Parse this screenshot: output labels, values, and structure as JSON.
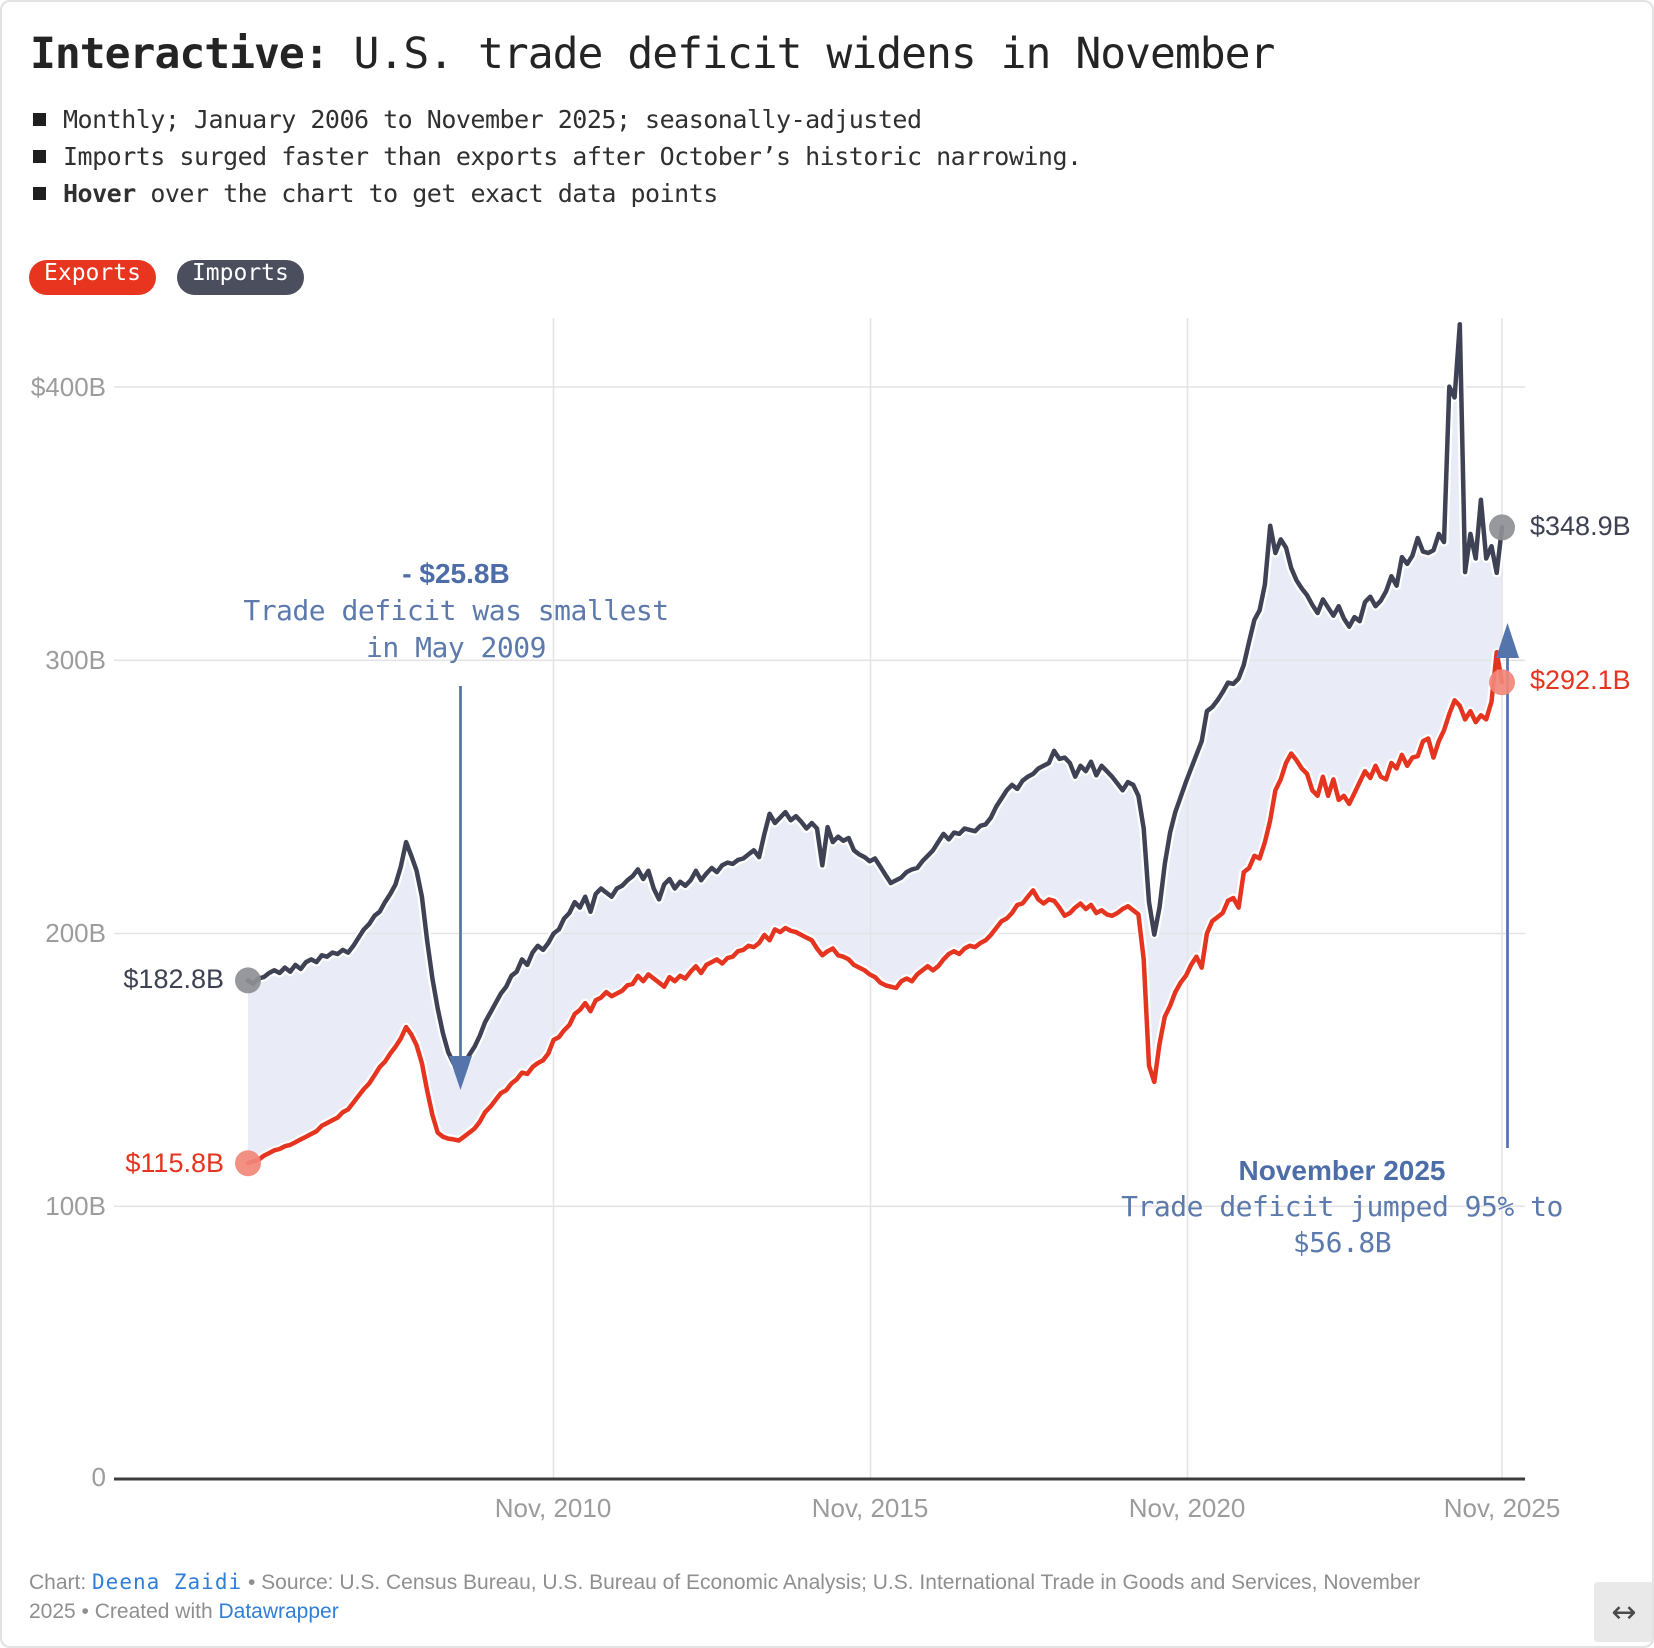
{
  "header": {
    "title_lead": "Interactive:",
    "title_rest": " U.S. trade deficit widens in November",
    "bullets": [
      {
        "bold": "",
        "text": "Monthly; January 2006 to November 2025; seasonally-adjusted"
      },
      {
        "bold": "",
        "text": "Imports surged faster than exports after October’s historic narrowing."
      },
      {
        "bold": "Hover",
        "text": " over the chart to get exact data points"
      }
    ]
  },
  "legend": {
    "exports_label": "Exports",
    "imports_label": "Imports"
  },
  "axis": {
    "y_ticks": [
      "$400B",
      "300B",
      "200B",
      "100B",
      "0"
    ],
    "x_ticks": [
      "Nov, 2010",
      "Nov, 2015",
      "Nov, 2020",
      "Nov, 2025"
    ]
  },
  "value_labels": {
    "imports_start": "$182.8B",
    "exports_start": "$115.8B",
    "imports_end": "$348.9B",
    "exports_end": "$292.1B"
  },
  "annotations": {
    "may2009": {
      "headline": "- $25.8B",
      "line1": "Trade deficit was smallest",
      "line2": "in May 2009"
    },
    "nov2025": {
      "headline": "November 2025",
      "line1": "Trade deficit jumped 95% to",
      "line2": "$56.8B"
    }
  },
  "footer": {
    "chart_prefix": "Chart: ",
    "chart_author": "Deena Zaidi",
    "source_text": " • Source: U.S. Census Bureau, U.S. Bureau of Economic Analysis; U.S. International Trade in Goods and Services, November",
    "line2_prefix": "2025 • Created with ",
    "creator_link": "Datawrapper",
    "resize_icon": "↔"
  },
  "colors": {
    "exports": "#e5341f",
    "exports_pill": "#e8351f",
    "imports": "#3f4254",
    "imports_pill": "#4b4e5d",
    "deficit_area": "#e9ecf6",
    "annotation_blue": "#5474ab",
    "imports_dot": "#8e8f95",
    "exports_dot": "#f28779",
    "grid": "#e4e4e6",
    "axis_text": "#9c9c9c",
    "link_blue": "#2f7ed8"
  },
  "chart_data": {
    "type": "line",
    "title": "Interactive: U.S. trade deficit widens in November",
    "unit": "$B (goods and services, seasonally adjusted)",
    "frequency": "monthly",
    "x_range": "Jan 2006 – Nov 2025",
    "x_tick_labels": [
      "Nov, 2010",
      "Nov, 2015",
      "Nov, 2020",
      "Nov, 2025"
    ],
    "x_tick_month_index": [
      58,
      118,
      178,
      238
    ],
    "ylim": [
      0,
      430
    ],
    "y_gridlines": [
      0,
      100,
      200,
      300,
      400
    ],
    "legend_position": "top-left",
    "key_points": {
      "smallest_deficit": {
        "date": "May 2009",
        "deficit": 25.8
      },
      "latest": {
        "date": "Nov 2025",
        "imports": 348.9,
        "exports": 292.1,
        "deficit": 56.8,
        "deficit_change_pct": 95
      }
    },
    "series": [
      {
        "name": "Exports",
        "values": [
          115.8,
          116.5,
          117.0,
          118.5,
          119.5,
          120.5,
          121.0,
          122.0,
          122.5,
          123.5,
          124.5,
          125.5,
          126.5,
          127.5,
          129.5,
          130.5,
          131.5,
          132.5,
          134.5,
          135.5,
          138.0,
          140.5,
          143.0,
          145.0,
          148.0,
          151.0,
          153.0,
          156.0,
          158.5,
          161.5,
          165.7,
          163.0,
          159.0,
          152.5,
          142.5,
          133.5,
          127.0,
          125.5,
          124.8,
          124.5,
          124.1,
          125.5,
          127.0,
          128.5,
          131.0,
          134.5,
          136.5,
          139.0,
          141.5,
          142.5,
          145.0,
          146.5,
          149.0,
          148.5,
          151.0,
          152.5,
          153.5,
          156.0,
          161.0,
          162.0,
          164.5,
          166.5,
          170.5,
          172.0,
          174.5,
          171.5,
          175.5,
          176.5,
          178.5,
          177.0,
          178.0,
          179.0,
          181.0,
          181.5,
          184.5,
          182.5,
          185.0,
          183.5,
          182.0,
          180.5,
          184.0,
          182.5,
          184.5,
          183.5,
          186.0,
          188.0,
          185.5,
          188.5,
          189.5,
          190.5,
          189.0,
          191.0,
          191.5,
          193.5,
          194.0,
          195.5,
          195.0,
          196.5,
          199.5,
          197.5,
          201.5,
          200.5,
          202.0,
          201.0,
          200.5,
          199.5,
          198.5,
          197.5,
          194.5,
          192.0,
          193.5,
          194.5,
          192.0,
          191.5,
          190.5,
          188.5,
          187.5,
          186.5,
          185.0,
          184.0,
          182.0,
          181.0,
          180.5,
          180.0,
          182.5,
          183.5,
          182.5,
          185.0,
          186.5,
          188.0,
          186.5,
          188.0,
          190.5,
          192.5,
          193.5,
          192.5,
          194.5,
          195.5,
          195.0,
          196.5,
          197.5,
          199.5,
          202.0,
          204.5,
          205.5,
          207.5,
          210.5,
          211.0,
          213.5,
          215.8,
          212.5,
          211.0,
          212.5,
          212.0,
          209.5,
          206.5,
          207.5,
          209.5,
          211.0,
          209.0,
          210.5,
          207.5,
          208.5,
          207.0,
          206.5,
          207.5,
          209.0,
          210.0,
          208.5,
          207.0,
          190.5,
          151.5,
          145.6,
          159.5,
          169.5,
          173.5,
          178.5,
          182.0,
          184.5,
          188.5,
          191.5,
          187.5,
          200.0,
          204.5,
          206.0,
          207.5,
          212.0,
          213.0,
          209.5,
          222.5,
          224.0,
          228.5,
          227.5,
          233.5,
          241.5,
          252.5,
          256.5,
          262.5,
          266.0,
          263.5,
          260.5,
          258.5,
          252.5,
          250.5,
          257.5,
          250.5,
          256.5,
          249.0,
          250.5,
          247.5,
          251.5,
          255.5,
          259.5,
          257.0,
          261.5,
          257.5,
          256.5,
          262.5,
          260.5,
          265.5,
          261.5,
          264.5,
          265.0,
          270.5,
          271.5,
          264.5,
          270.5,
          274.5,
          280.5,
          285.5,
          283.5,
          278.5,
          281.5,
          277.5,
          280.0,
          278.5,
          285.0,
          303.1,
          292.1
        ]
      },
      {
        "name": "Imports",
        "values": [
          182.8,
          181.5,
          183.5,
          184.0,
          185.5,
          186.5,
          185.5,
          187.5,
          186.0,
          188.5,
          187.0,
          189.5,
          190.5,
          189.5,
          192.0,
          191.5,
          193.0,
          192.5,
          194.0,
          193.0,
          195.5,
          198.5,
          201.5,
          203.5,
          206.5,
          208.0,
          211.5,
          214.5,
          218.0,
          224.5,
          233.5,
          228.5,
          223.0,
          213.5,
          197.5,
          183.5,
          172.5,
          163.5,
          156.5,
          152.5,
          149.9,
          152.0,
          155.5,
          158.5,
          162.5,
          167.5,
          171.0,
          174.5,
          178.0,
          180.5,
          184.5,
          186.0,
          190.5,
          188.5,
          193.0,
          195.5,
          194.0,
          196.5,
          200.0,
          201.5,
          205.5,
          207.5,
          211.5,
          209.5,
          213.5,
          208.0,
          214.5,
          216.5,
          215.0,
          213.5,
          216.5,
          217.5,
          219.5,
          221.0,
          223.5,
          220.0,
          223.0,
          216.5,
          212.5,
          218.0,
          220.0,
          216.5,
          219.0,
          217.5,
          219.5,
          223.0,
          219.5,
          222.0,
          224.0,
          222.5,
          225.0,
          226.0,
          225.5,
          227.0,
          227.5,
          229.0,
          230.5,
          228.0,
          236.5,
          243.9,
          240.5,
          242.5,
          244.5,
          241.5,
          243.0,
          241.0,
          238.5,
          240.5,
          238.5,
          225.0,
          239.0,
          233.5,
          235.5,
          234.0,
          235.0,
          230.5,
          229.0,
          228.0,
          226.5,
          227.5,
          224.5,
          221.5,
          218.5,
          219.5,
          220.5,
          222.5,
          223.5,
          224.0,
          226.5,
          228.5,
          230.5,
          233.5,
          236.5,
          234.5,
          237.0,
          236.5,
          238.5,
          238.0,
          237.5,
          239.5,
          240.0,
          242.5,
          246.5,
          249.5,
          252.5,
          254.5,
          253.0,
          256.0,
          257.5,
          258.5,
          260.5,
          261.5,
          262.5,
          267.0,
          264.0,
          264.5,
          262.5,
          257.5,
          261.5,
          259.5,
          263.0,
          258.0,
          261.5,
          259.5,
          257.5,
          255.0,
          252.5,
          255.5,
          254.5,
          250.5,
          238.5,
          211.5,
          199.6,
          209.5,
          225.5,
          237.0,
          244.5,
          250.0,
          255.5,
          260.5,
          265.5,
          270.5,
          281.5,
          283.0,
          285.5,
          288.5,
          292.0,
          291.5,
          293.5,
          298.5,
          307.0,
          315.0,
          318.5,
          328.0,
          349.5,
          339.5,
          344.5,
          341.5,
          334.0,
          329.5,
          326.5,
          324.0,
          320.5,
          317.5,
          322.5,
          319.5,
          316.5,
          320.0,
          315.5,
          312.5,
          316.0,
          314.5,
          321.5,
          323.5,
          320.0,
          322.0,
          325.5,
          331.0,
          327.5,
          338.0,
          335.5,
          338.5,
          345.0,
          340.0,
          339.5,
          340.5,
          346.5,
          343.5,
          400.5,
          396.5,
          423.4,
          332.5,
          346.5,
          337.5,
          359.0,
          337.5,
          342.0,
          332.2,
          348.9
        ]
      }
    ]
  }
}
